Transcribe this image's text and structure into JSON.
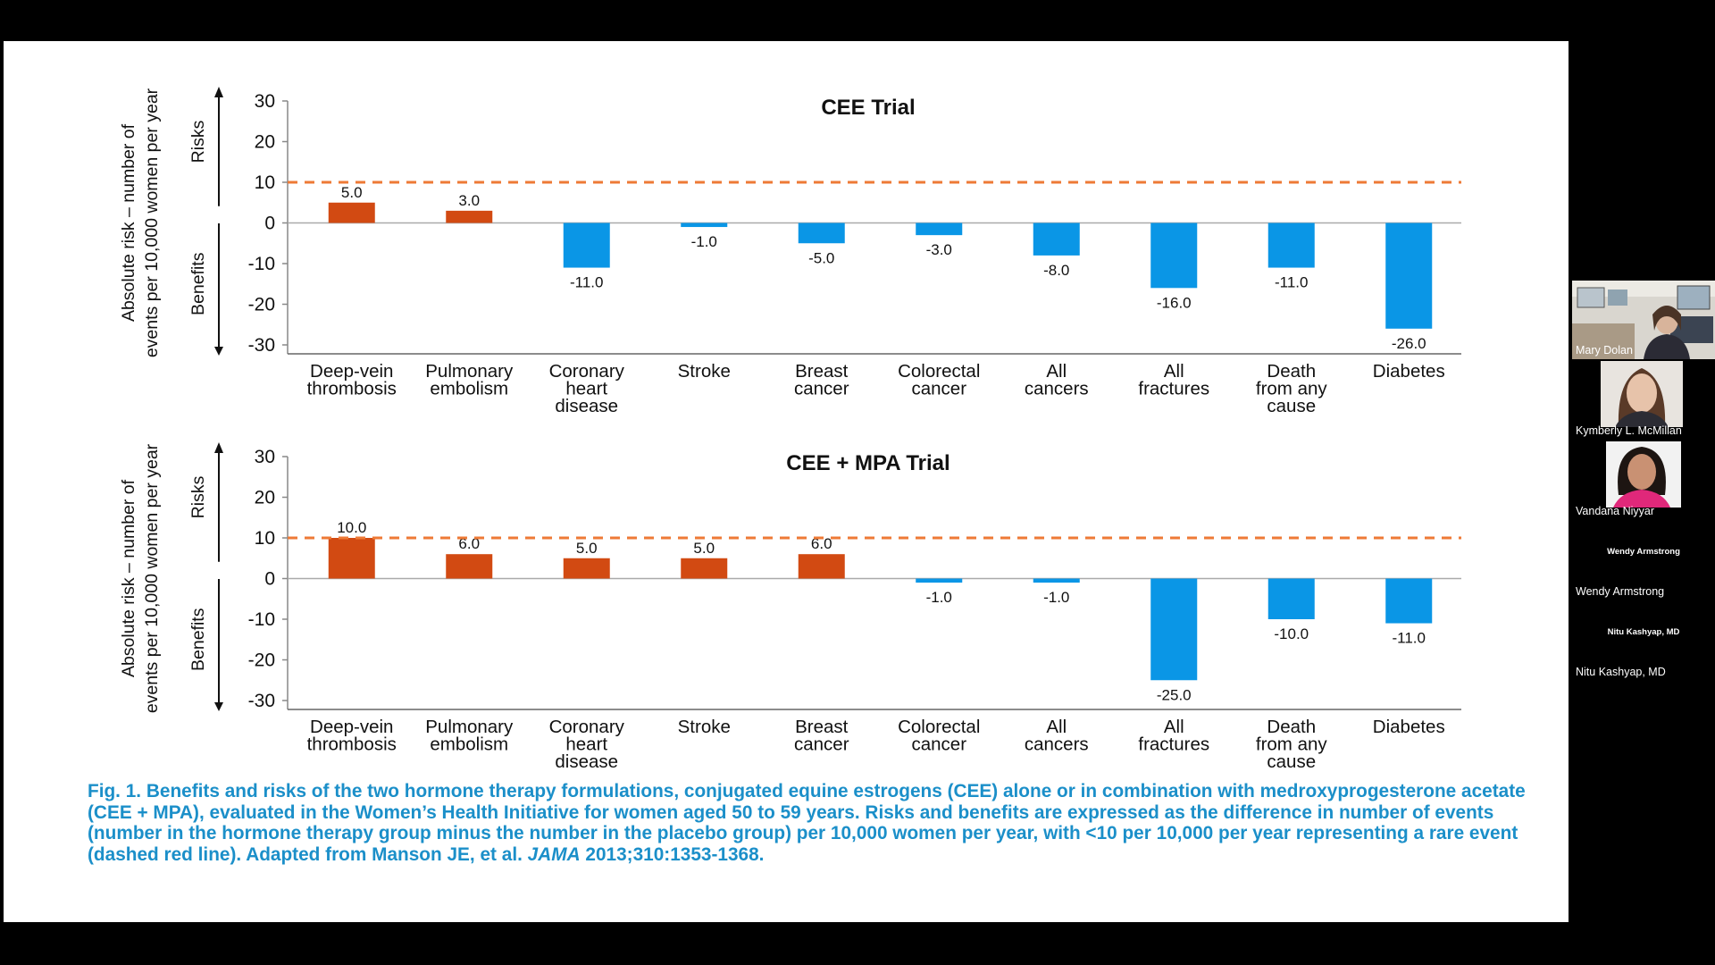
{
  "colors": {
    "risk_bar": "#d24a12",
    "benefit_bar": "#0a96e6",
    "rare_line": "#ee7a36",
    "caption": "#1b8fc9"
  },
  "chart_data": [
    {
      "type": "bar",
      "title": "CEE Trial",
      "ylabel_line1": "Absolute risk – number of",
      "ylabel_line2": "events per 10,000 women per year",
      "risks_label": "Risks",
      "benefits_label": "Benefits",
      "ylim": [
        -30,
        30
      ],
      "yticks": [
        30,
        20,
        10,
        0,
        -10,
        -20,
        -30
      ],
      "ytick_labels": [
        "30",
        "20",
        "10",
        "0",
        "-10",
        "-20",
        "-30"
      ],
      "reference_line": 10,
      "categories": [
        [
          "Deep-vein",
          "thrombosis"
        ],
        [
          "Pulmonary",
          "embolism"
        ],
        [
          "Coronary",
          "heart",
          "disease"
        ],
        [
          "Stroke"
        ],
        [
          "Breast",
          "cancer"
        ],
        [
          "Colorectal",
          "cancer"
        ],
        [
          "All",
          "cancers"
        ],
        [
          "All",
          "fractures"
        ],
        [
          "Death",
          "from any",
          "cause"
        ],
        [
          "Diabetes"
        ]
      ],
      "values": [
        5.0,
        3.0,
        -11.0,
        -1.0,
        -5.0,
        -3.0,
        -8.0,
        -16.0,
        -11.0,
        -26.0
      ],
      "value_labels": [
        "5.0",
        "3.0",
        "-11.0",
        "-1.0",
        "-5.0",
        "-3.0",
        "-8.0",
        "-16.0",
        "-11.0",
        "-26.0"
      ]
    },
    {
      "type": "bar",
      "title": "CEE + MPA Trial",
      "ylabel_line1": "Absolute risk – number of",
      "ylabel_line2": "events per 10,000 women per year",
      "risks_label": "Risks",
      "benefits_label": "Benefits",
      "ylim": [
        -30,
        30
      ],
      "yticks": [
        30,
        20,
        10,
        0,
        -10,
        -20,
        -30
      ],
      "ytick_labels": [
        "30",
        "20",
        "10",
        "0",
        "-10",
        "-20",
        "-30"
      ],
      "reference_line": 10,
      "categories": [
        [
          "Deep-vein",
          "thrombosis"
        ],
        [
          "Pulmonary",
          "embolism"
        ],
        [
          "Coronary",
          "heart",
          "disease"
        ],
        [
          "Stroke"
        ],
        [
          "Breast",
          "cancer"
        ],
        [
          "Colorectal",
          "cancer"
        ],
        [
          "All",
          "cancers"
        ],
        [
          "All",
          "fractures"
        ],
        [
          "Death",
          "from any",
          "cause"
        ],
        [
          "Diabetes"
        ]
      ],
      "values": [
        10.0,
        6.0,
        5.0,
        5.0,
        6.0,
        -1.0,
        -1.0,
        -25.0,
        -10.0,
        -11.0
      ],
      "value_labels": [
        "10.0",
        "6.0",
        "5.0",
        "5.0",
        "6.0",
        "-1.0",
        "-1.0",
        "-25.0",
        "-10.0",
        "-11.0"
      ]
    }
  ],
  "caption": {
    "part1": "Fig. 1. Benefits and risks of the two hormone therapy formulations, conjugated equine estrogens (CEE) alone or in combination with medroxyprogesterone acetate (CEE + MPA), evaluated in the Women’s Health Initiative for women aged 50 to 59 years. Risks and benefits are expressed as the difference in number of events (number in the hormone therapy group minus the number in the placebo group) per 10,000 women per year, with <10 per 10,000 per year representing a rare event (dashed red line). Adapted from Manson JE, et al. ",
    "journal": "JAMA",
    "part2": " 2013;310:1353-1368."
  },
  "participants": [
    {
      "name": "Mary Dolan",
      "video": "office-webcam"
    },
    {
      "name": "Kymberly L. McMillan",
      "video": "portrait"
    },
    {
      "name": "Vandana Niyyar",
      "video": "portrait"
    },
    {
      "name": "Wendy Armstrong",
      "center_label": "Wendy Armstrong",
      "video": "off"
    },
    {
      "name": "Nitu Kashyap, MD",
      "center_label": "Nitu Kashyap, MD",
      "video": "off"
    }
  ]
}
